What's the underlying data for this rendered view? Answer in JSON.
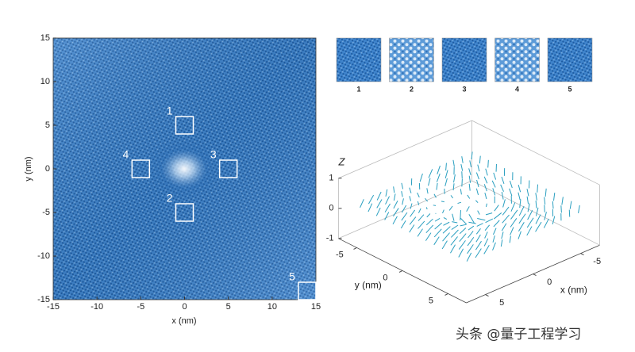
{
  "map": {
    "x_label": "x (nm)",
    "y_label": "y (nm)",
    "xlim": [
      -15,
      15
    ],
    "ylim": [
      -15,
      15
    ],
    "xticks": [
      -15,
      -10,
      -5,
      0,
      5,
      10,
      15
    ],
    "yticks": [
      -15,
      -10,
      -5,
      0,
      5,
      10,
      15
    ],
    "regions": [
      {
        "label": "1",
        "x": 0,
        "y": 5
      },
      {
        "label": "2",
        "x": 0,
        "y": -5
      },
      {
        "label": "3",
        "x": 5,
        "y": 0
      },
      {
        "label": "4",
        "x": -5,
        "y": 0
      },
      {
        "label": "5",
        "x": 14,
        "y": -14
      }
    ]
  },
  "insets": [
    "1",
    "2",
    "3",
    "4",
    "5"
  ],
  "vector_plot": {
    "z_label": "Z",
    "x_label": "x (nm)",
    "y_label": "y (nm)",
    "xticks": [
      -5,
      0,
      5
    ],
    "yticks": [
      -5,
      0,
      5
    ],
    "zticks": [
      -1,
      0,
      1
    ]
  },
  "watermark": "头条 @量子工程学习"
}
